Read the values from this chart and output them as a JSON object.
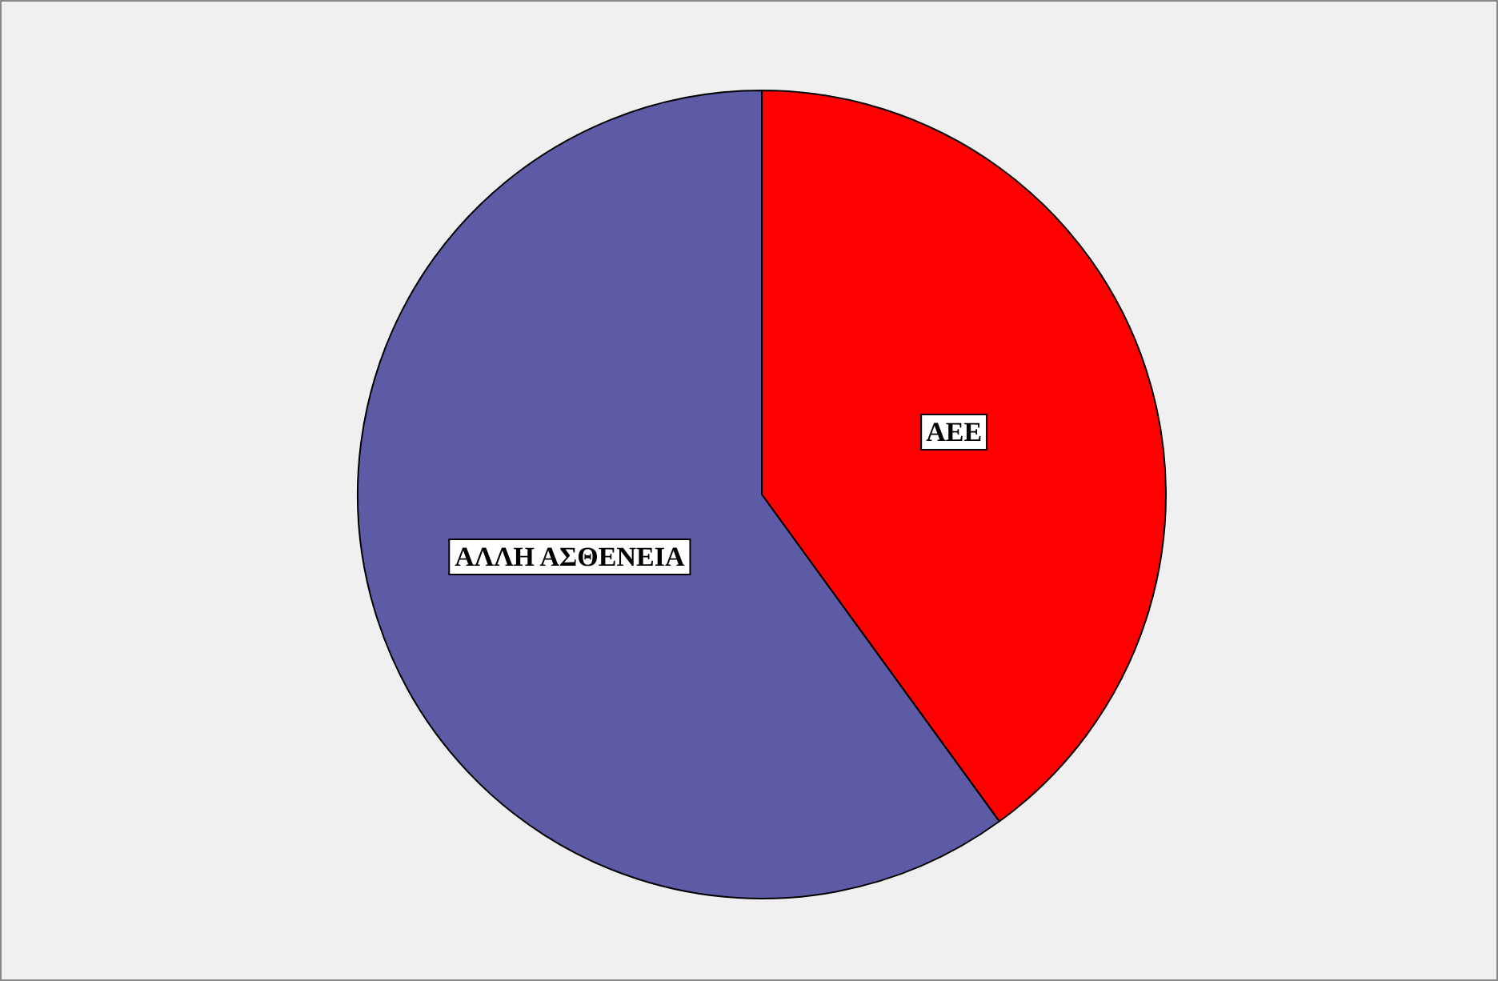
{
  "chart_data": {
    "type": "pie",
    "categories": [
      "ΑΕΕ",
      "ΑΛΛΗ ΑΣΘΕΝΕΙΑ"
    ],
    "values": [
      40,
      60
    ],
    "colors": [
      "#ff0000",
      "#5d5aa6"
    ],
    "legend": false
  }
}
